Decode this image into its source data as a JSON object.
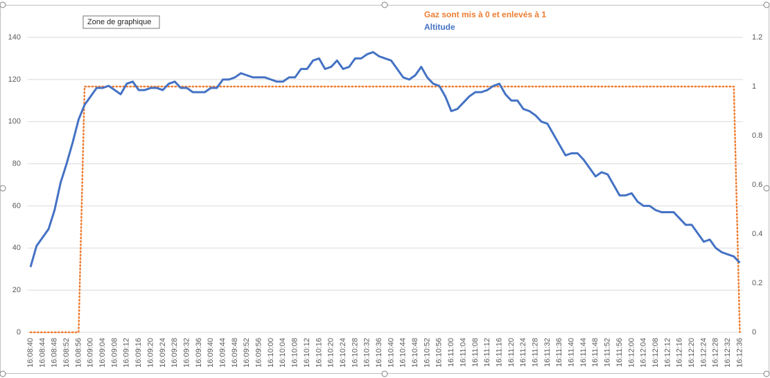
{
  "chart_data": {
    "type": "line",
    "tooltip": "Zone de graphique",
    "categories": [
      "16:08:40",
      null,
      "16:08:44",
      null,
      "16:08:48",
      null,
      "16:08:52",
      null,
      "16:08:56",
      null,
      "16:09:00",
      null,
      "16:09:04",
      null,
      "16:09:08",
      null,
      "16:09:12",
      null,
      "16:09:16",
      null,
      "16:09:20",
      null,
      "16:09:24",
      null,
      "16:09:28",
      null,
      "16:09:32",
      null,
      "16:09:36",
      null,
      "16:09:40",
      null,
      "16:09:44",
      null,
      "16:09:48",
      null,
      "16:09:52",
      null,
      "16:09:56",
      null,
      "16:10:00",
      null,
      "16:10:04",
      null,
      "16:10:08",
      null,
      "16:10:12",
      null,
      "16:10:16",
      null,
      "16:10:20",
      null,
      "16:10:24",
      null,
      "16:10:28",
      null,
      "16:10:32",
      null,
      "16:10:36",
      null,
      "16:10:40",
      null,
      "16:10:44",
      null,
      "16:10:48",
      null,
      "16:10:52",
      null,
      "16:10:56",
      null,
      "16:11:00",
      null,
      "16:11:04",
      null,
      "16:11:08",
      null,
      "16:11:12",
      null,
      "16:11:16",
      null,
      "16:11:20",
      null,
      "16:11:24",
      null,
      "16:11:28",
      null,
      "16:11:32",
      null,
      "16:11:36",
      null,
      "16:11:40",
      null,
      "16:11:44",
      null,
      "16:11:48",
      null,
      "16:11:52",
      null,
      "16:11:56",
      null,
      "16:12:00",
      null,
      "16:12:04",
      null,
      "16:12:08",
      null,
      "16:12:12",
      null,
      "16:12:16",
      null,
      "16:12:20",
      null,
      "16:12:24",
      null,
      "16:12:28",
      null,
      "16:12:32",
      null,
      "16:12:36"
    ],
    "series": [
      {
        "name": "Gaz sont mis à 0 et enlevés à 1",
        "color": "#ed7d31",
        "axis": "y2",
        "dashed": true,
        "values": [
          0,
          0,
          0,
          0,
          0,
          0,
          0,
          0,
          0,
          1,
          1,
          1,
          1,
          1,
          1,
          1,
          1,
          1,
          1,
          1,
          1,
          1,
          1,
          1,
          1,
          1,
          1,
          1,
          1,
          1,
          1,
          1,
          1,
          1,
          1,
          1,
          1,
          1,
          1,
          1,
          1,
          1,
          1,
          1,
          1,
          1,
          1,
          1,
          1,
          1,
          1,
          1,
          1,
          1,
          1,
          1,
          1,
          1,
          1,
          1,
          1,
          1,
          1,
          1,
          1,
          1,
          1,
          1,
          1,
          1,
          1,
          1,
          1,
          1,
          1,
          1,
          1,
          1,
          1,
          1,
          1,
          1,
          1,
          1,
          1,
          1,
          1,
          1,
          1,
          1,
          1,
          1,
          1,
          1,
          1,
          1,
          1,
          1,
          1,
          1,
          1,
          1,
          1,
          1,
          1,
          1,
          1,
          1,
          1,
          1,
          1,
          1,
          1,
          1,
          1,
          1,
          1,
          1,
          0
        ]
      },
      {
        "name": "Altitude",
        "color": "#4472c4",
        "values": [
          31,
          41,
          45,
          49,
          58,
          71,
          80,
          90,
          101,
          108,
          112,
          116,
          116,
          117,
          115,
          113,
          118,
          119,
          115,
          115,
          116,
          116,
          115,
          118,
          119,
          116,
          116,
          114,
          114,
          114,
          116,
          116,
          120,
          120,
          121,
          123,
          122,
          121,
          121,
          121,
          120,
          119,
          119,
          121,
          121,
          125,
          125,
          129,
          130,
          125,
          126,
          129,
          125,
          126,
          130,
          130,
          132,
          133,
          131,
          130,
          129,
          125,
          121,
          120,
          122,
          126,
          121,
          118,
          117,
          112,
          105,
          106,
          109,
          112,
          114,
          114,
          115,
          117,
          118,
          113,
          110,
          110,
          106,
          105,
          103,
          100,
          99,
          94,
          89,
          84,
          85,
          85,
          82,
          78,
          74,
          76,
          75,
          70,
          65,
          65,
          66,
          62,
          60,
          60,
          58,
          57,
          57,
          57,
          54,
          51,
          51,
          47,
          43,
          44,
          40,
          38,
          37,
          36,
          33
        ]
      }
    ],
    "ylim": [
      0,
      140
    ],
    "yticks": [
      0,
      20,
      40,
      60,
      80,
      100,
      120,
      140
    ],
    "y2lim": [
      0,
      1.2
    ],
    "y2ticks": [
      0,
      0.2,
      0.4,
      0.6,
      0.8,
      1,
      1.2
    ],
    "grid": true
  }
}
